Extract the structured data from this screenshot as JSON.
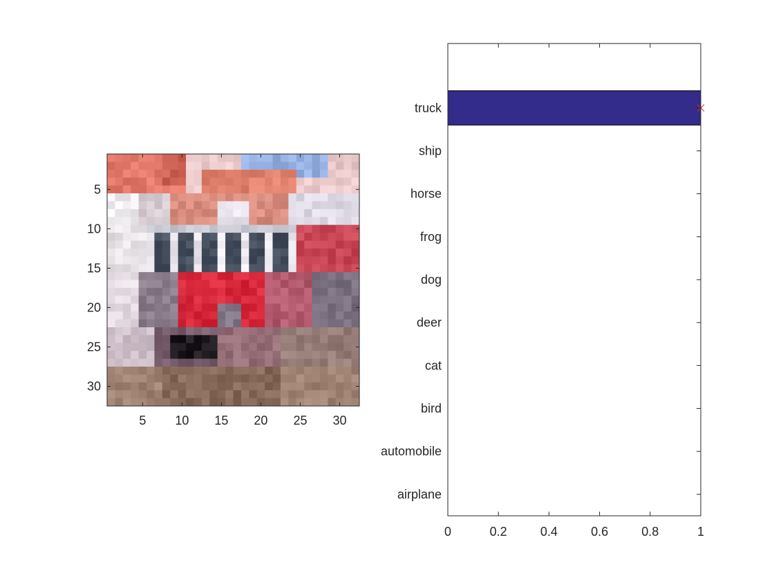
{
  "chart_data": [
    {
      "type": "heatmap",
      "title": "",
      "xlabel": "",
      "ylabel": "",
      "xlim": [
        0.5,
        32.5
      ],
      "ylim": [
        0.5,
        32.5
      ],
      "y_reversed": true,
      "x_ticks": [
        5,
        10,
        15,
        20,
        25,
        30
      ],
      "y_ticks": [
        5,
        10,
        15,
        20,
        25,
        30
      ],
      "image_content": "fire-truck-photo-32x32"
    },
    {
      "type": "bar",
      "orientation": "horizontal",
      "title": "",
      "xlabel": "",
      "ylabel": "",
      "categories": [
        "airplane",
        "automobile",
        "bird",
        "cat",
        "deer",
        "dog",
        "frog",
        "horse",
        "ship",
        "truck"
      ],
      "values": [
        0,
        0,
        0,
        0,
        0,
        0,
        0,
        0,
        0,
        1
      ],
      "xlim": [
        0,
        1
      ],
      "ylim": [
        -0.5,
        10.5
      ],
      "x_ticks": [
        "0",
        "0.2",
        "0.4",
        "0.6",
        "0.8",
        "1"
      ],
      "bar_color": "#332c8a",
      "marker": {
        "category": "truck",
        "value": 1,
        "symbol": "x",
        "color": "#d62728"
      }
    }
  ]
}
